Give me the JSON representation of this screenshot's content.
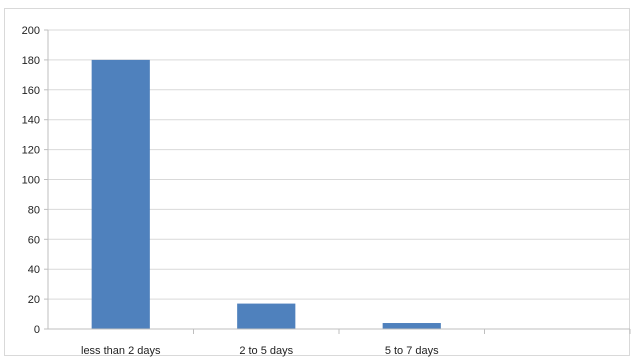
{
  "chart_data": {
    "type": "bar",
    "categories": [
      "less than 2 days",
      "2 to 5 days",
      "5 to 7 days",
      ""
    ],
    "values": [
      180,
      17,
      4,
      null
    ],
    "ylim": [
      0,
      200
    ],
    "yticks": [
      0,
      20,
      40,
      60,
      80,
      100,
      120,
      140,
      160,
      180,
      200
    ],
    "grid": true,
    "legend": "none",
    "bar_color": "#4f81bd",
    "grid_color": "#d9d9d9",
    "axis_color": "#bfbfbf"
  }
}
